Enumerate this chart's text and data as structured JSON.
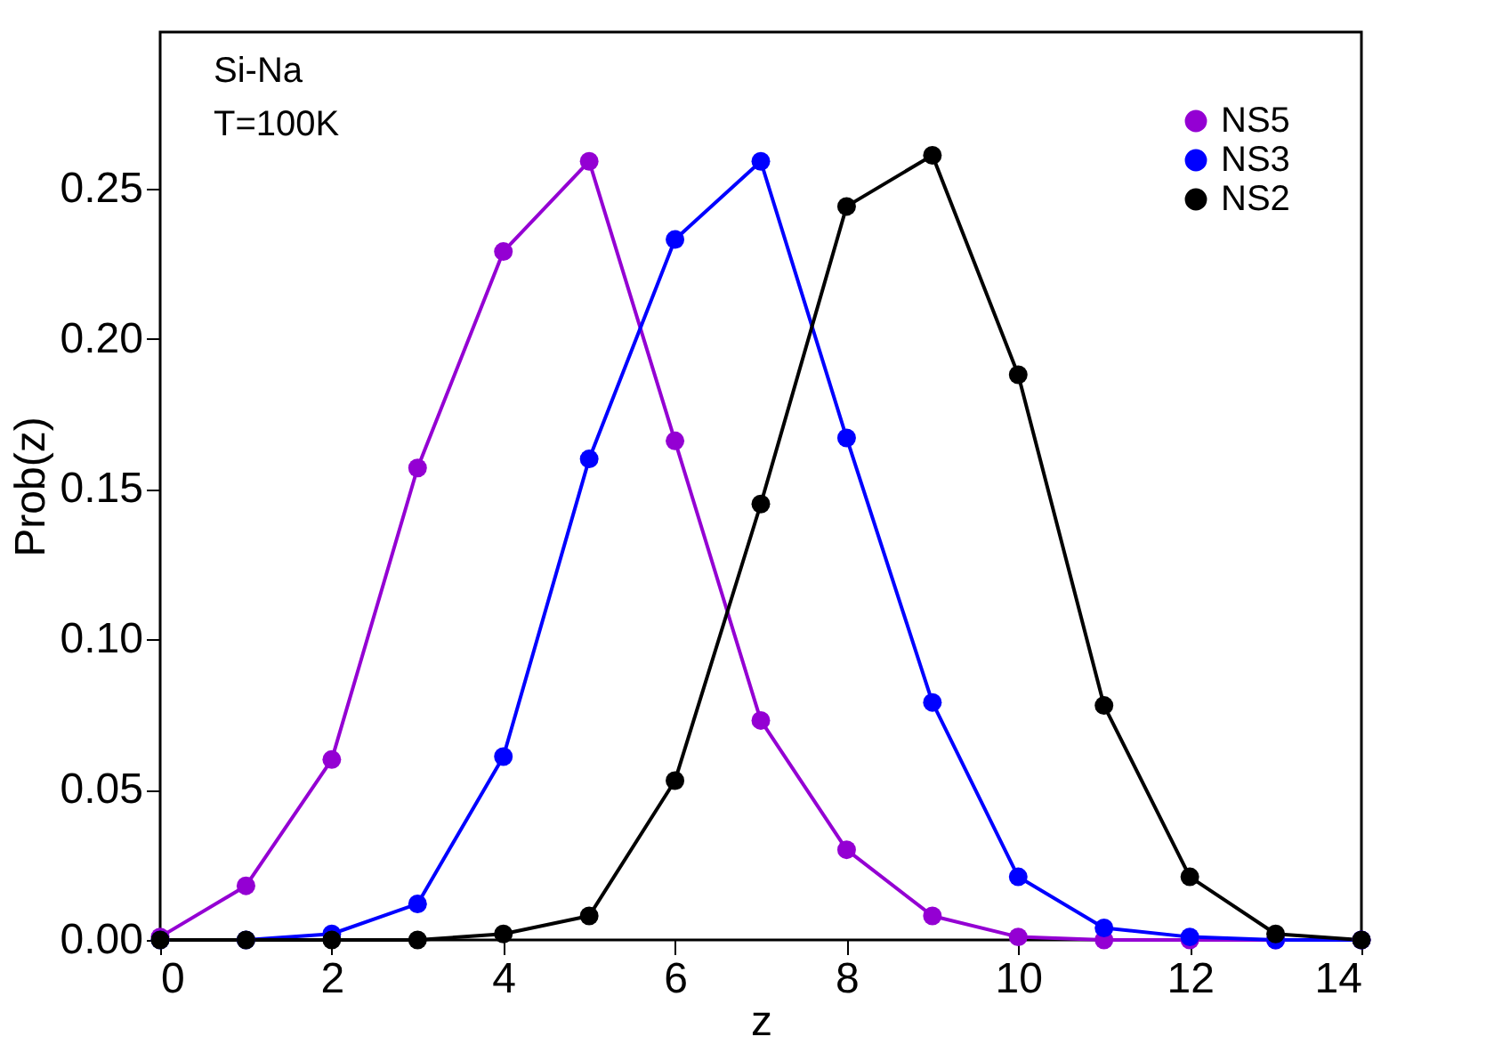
{
  "chart_data": {
    "type": "line",
    "xlabel": "z",
    "ylabel": "Prob(z)",
    "x": [
      0,
      1,
      2,
      3,
      4,
      5,
      6,
      7,
      8,
      9,
      10,
      11,
      12,
      13,
      14
    ],
    "series": [
      {
        "name": "NS5",
        "color": "#9400d3",
        "values": [
          0.001,
          0.018,
          0.06,
          0.157,
          0.229,
          0.259,
          0.166,
          0.073,
          0.03,
          0.008,
          0.001,
          0.0,
          0.0,
          0.0,
          0.0
        ]
      },
      {
        "name": "NS3",
        "color": "#0000ff",
        "values": [
          0.0,
          0.0,
          0.002,
          0.012,
          0.061,
          0.16,
          0.233,
          0.259,
          0.167,
          0.079,
          0.021,
          0.004,
          0.001,
          0.0,
          0.0
        ]
      },
      {
        "name": "NS2",
        "color": "#000000",
        "values": [
          0.0,
          0.0,
          0.0,
          0.0,
          0.002,
          0.008,
          0.053,
          0.145,
          0.244,
          0.261,
          0.188,
          0.078,
          0.021,
          0.002,
          0.0
        ]
      }
    ],
    "xlim": [
      0,
      14
    ],
    "xticks": [
      0,
      2,
      4,
      6,
      8,
      10,
      12,
      14
    ],
    "ylim": [
      0,
      0.302
    ],
    "yticks": [
      {
        "value": 0,
        "label": "0.00"
      },
      {
        "value": 0.05,
        "label": "0.05"
      },
      {
        "value": 0.1,
        "label": "0.10"
      },
      {
        "value": 0.15,
        "label": "0.15"
      },
      {
        "value": 0.2,
        "label": "0.20"
      },
      {
        "value": 0.25,
        "label": "0.25"
      }
    ],
    "annotations": [
      "Si-Na",
      "T=100K"
    ],
    "legend": "top right",
    "grid": false,
    "marker": "circle",
    "line_style": "solid"
  }
}
